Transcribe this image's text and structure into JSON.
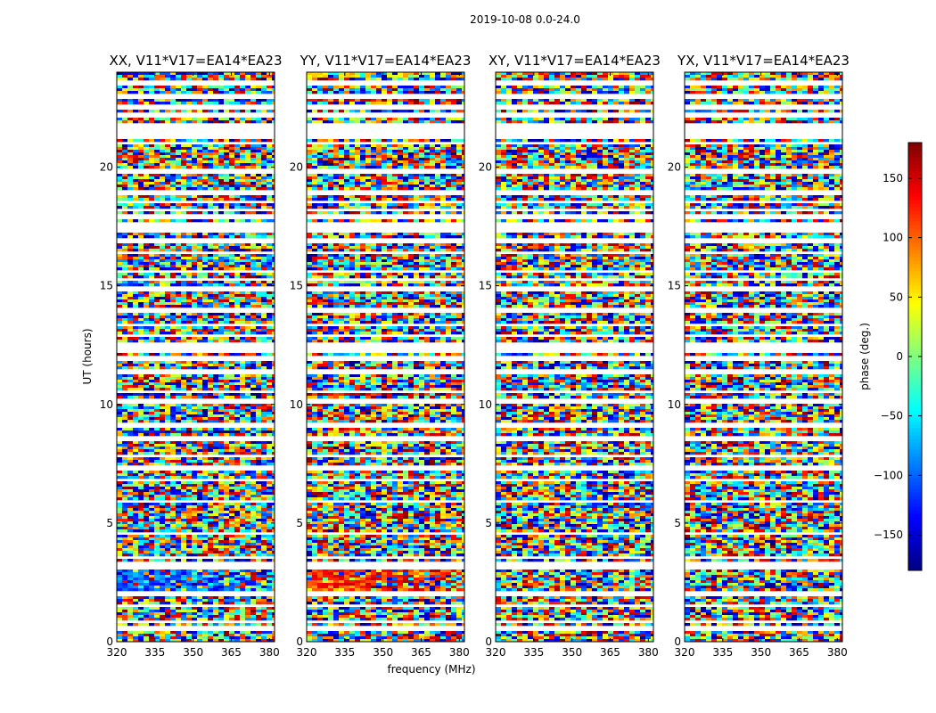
{
  "chart_data": {
    "type": "heatmap",
    "title": "2019-10-08 0.0-24.0",
    "xlabel": "frequency (MHz)",
    "ylabel": "UT (hours)",
    "xlim": [
      320,
      382
    ],
    "ylim": [
      0,
      24
    ],
    "xticks": [
      "320",
      "335",
      "350",
      "365",
      "380"
    ],
    "yticks": [
      "0",
      "5",
      "10",
      "15",
      "20"
    ],
    "colormap": "jet",
    "colorbar": {
      "label": "phase (deg.)",
      "range": [
        -180,
        180
      ],
      "ticks": [
        "150",
        "100",
        "50",
        "0",
        "−50",
        "−100",
        "−150"
      ]
    },
    "panels": [
      {
        "title": "XX, V11*V17=EA14*EA23",
        "polarization": "XX",
        "coherent_phase": "negative (blue)"
      },
      {
        "title": "YY, V11*V17=EA14*EA23",
        "polarization": "YY",
        "coherent_phase": "positive (red/yellow)"
      },
      {
        "title": "XY, V11*V17=EA14*EA23",
        "polarization": "XY",
        "coherent_phase": "none (noise)"
      },
      {
        "title": "YX, V11*V17=EA14*EA23",
        "polarization": "YX",
        "coherent_phase": "none (noise)"
      }
    ]
  }
}
